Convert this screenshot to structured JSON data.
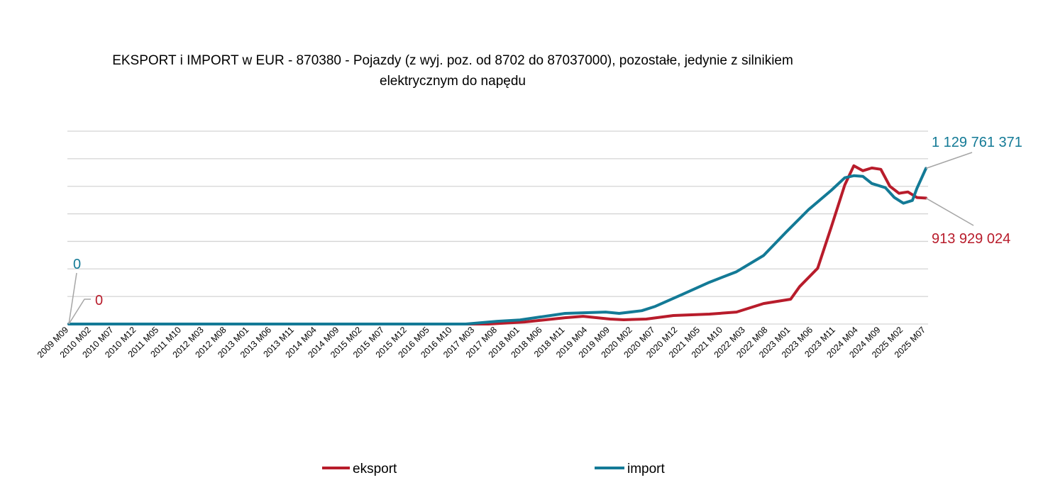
{
  "chart_data": {
    "type": "line",
    "title_line1": "EKSPORT i IMPORT w EUR - 870380 - Pojazdy (z wyj. poz. od 8702 do 87037000), pozostałe, jedynie z silnikiem",
    "title_line2": "elektrycznym do napędu",
    "xlabel": "",
    "ylabel": "",
    "x_start": "2009 M09",
    "x_end": "2025 M07",
    "ylim": [
      0,
      1400000000
    ],
    "y_grid_step": 200000000,
    "grid": true,
    "y_tick_labels_shown": false,
    "legend_position": "bottom",
    "x_tick_labels": [
      "2009 M09",
      "2010 M02",
      "2010 M07",
      "2010 M12",
      "2011 M05",
      "2011 M10",
      "2012 M03",
      "2012 M08",
      "2013 M01",
      "2013 M06",
      "2013 M11",
      "2014 M04",
      "2014 M09",
      "2015 M02",
      "2015 M07",
      "2015 M12",
      "2016 M05",
      "2016 M10",
      "2017 M03",
      "2017 M08",
      "2018 M01",
      "2018 M06",
      "2018 M11",
      "2019 M04",
      "2019 M09",
      "2020 M02",
      "2020 M07",
      "2020 M12",
      "2021 M05",
      "2021 M10",
      "2022 M03",
      "2022 M08",
      "2023 M01",
      "2023 M06",
      "2023 M11",
      "2024 M04",
      "2024 M09",
      "2025 M02",
      "2025 M07"
    ],
    "series": [
      {
        "name": "eksport",
        "color": "#b81c2b",
        "first_label": "0",
        "last_label": "913 929 024",
        "points": [
          [
            "2009 M09",
            0
          ],
          [
            "2017 M06",
            0
          ],
          [
            "2018 M02",
            15000000
          ],
          [
            "2018 M11",
            46000000
          ],
          [
            "2019 M03",
            56000000
          ],
          [
            "2019 M09",
            36000000
          ],
          [
            "2019 M12",
            31000000
          ],
          [
            "2020 M05",
            36000000
          ],
          [
            "2020 M11",
            62000000
          ],
          [
            "2021 M07",
            72000000
          ],
          [
            "2022 M01",
            87000000
          ],
          [
            "2022 M07",
            149000000
          ],
          [
            "2023 M01",
            180000000
          ],
          [
            "2023 M03",
            272000000
          ],
          [
            "2023 M07",
            405000000
          ],
          [
            "2023 M10",
            703000000
          ],
          [
            "2024 M01",
            1010000000
          ],
          [
            "2024 M03",
            1149000000
          ],
          [
            "2024 M05",
            1113000000
          ],
          [
            "2024 M07",
            1133000000
          ],
          [
            "2024 M09",
            1123000000
          ],
          [
            "2024 M11",
            1000000000
          ],
          [
            "2025 M01",
            949000000
          ],
          [
            "2025 M03",
            959000000
          ],
          [
            "2025 M05",
            918000000
          ],
          [
            "2025 M07",
            913929024
          ]
        ]
      },
      {
        "name": "import",
        "color": "#137a96",
        "first_label": "0",
        "last_label": "1 129 761 371",
        "points": [
          [
            "2009 M09",
            0
          ],
          [
            "2017 M01",
            0
          ],
          [
            "2017 M08",
            20000000
          ],
          [
            "2018 M01",
            30000000
          ],
          [
            "2018 M11",
            77000000
          ],
          [
            "2019 M08",
            87000000
          ],
          [
            "2019 M11",
            77000000
          ],
          [
            "2020 M04",
            97000000
          ],
          [
            "2020 M07",
            128000000
          ],
          [
            "2021 M01",
            215000000
          ],
          [
            "2021 M07",
            303000000
          ],
          [
            "2022 M01",
            380000000
          ],
          [
            "2022 M07",
            497000000
          ],
          [
            "2022 M12",
            667000000
          ],
          [
            "2023 M05",
            831000000
          ],
          [
            "2023 M10",
            970000000
          ],
          [
            "2024 M01",
            1062000000
          ],
          [
            "2024 M03",
            1077000000
          ],
          [
            "2024 M05",
            1072000000
          ],
          [
            "2024 M07",
            1020000000
          ],
          [
            "2024 M10",
            990000000
          ],
          [
            "2024 M12",
            918000000
          ],
          [
            "2025 M02",
            877000000
          ],
          [
            "2025 M04",
            897000000
          ],
          [
            "2025 M05",
            985000000
          ],
          [
            "2025 M07",
            1129761371
          ]
        ]
      }
    ]
  }
}
